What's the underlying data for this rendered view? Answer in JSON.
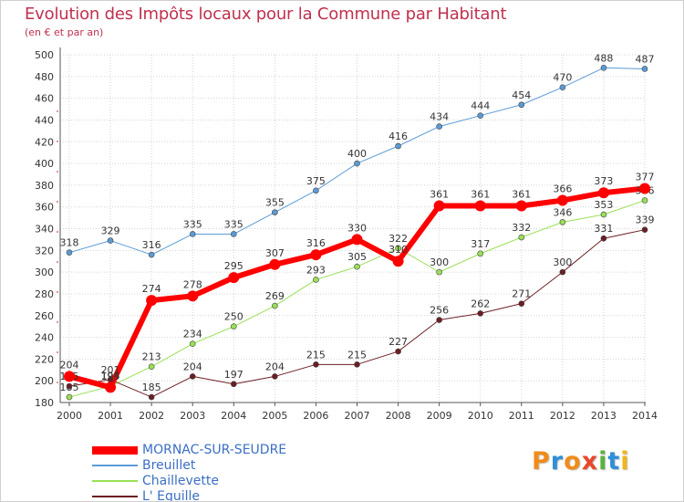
{
  "title": "Evolution des Impôts locaux pour la Commune par Habitant",
  "subtitle": "(en € et par an)",
  "brand": {
    "name": "Proxiti",
    "letters": [
      "P",
      "r",
      "o",
      "x",
      "i",
      "t",
      "i"
    ],
    "colors": [
      "#f08c1a",
      "#2f8fd8",
      "#f08c1a",
      "#e8472c",
      "#59b23b",
      "#2f8fd8",
      "#f0b61a"
    ]
  },
  "chart_data": {
    "type": "line",
    "title": "Evolution des Impôts locaux pour la Commune par Habitant",
    "ylabel": "(en € et par an)",
    "xlabel": "",
    "ylim": [
      180,
      500
    ],
    "yticks": [
      180,
      200,
      220,
      240,
      260,
      280,
      300,
      320,
      340,
      360,
      380,
      400,
      420,
      440,
      460,
      480,
      500
    ],
    "x": [
      "2000",
      "2001",
      "2002",
      "2003",
      "2004",
      "2005",
      "2006",
      "2007",
      "2008",
      "2009",
      "2010",
      "2011",
      "2012",
      "2013",
      "2014"
    ],
    "grid": true,
    "legend_position": "bottom-left",
    "series": [
      {
        "name": "Breuillet",
        "color": "#5b9bd5",
        "width": 1,
        "values": [
          318,
          329,
          316,
          335,
          335,
          355,
          375,
          400,
          416,
          434,
          444,
          454,
          470,
          488,
          487
        ]
      },
      {
        "name": "Chaillevette",
        "color": "#99e055",
        "width": 1,
        "values": [
          185,
          195,
          213,
          234,
          250,
          269,
          293,
          305,
          322,
          300,
          317,
          332,
          346,
          353,
          366
        ]
      },
      {
        "name": "L' Eguille",
        "color": "#6b1e23",
        "width": 1,
        "values": [
          195,
          201,
          185,
          204,
          197,
          204,
          215,
          215,
          227,
          256,
          262,
          271,
          300,
          331,
          339
        ]
      },
      {
        "name": "MORNAC-SUR-SEUDRE",
        "color": "#ff0000",
        "width": 6,
        "values": [
          204,
          194,
          274,
          278,
          295,
          307,
          316,
          330,
          310,
          361,
          361,
          361,
          366,
          373,
          377
        ]
      }
    ],
    "legend_order": [
      "MORNAC-SUR-SEUDRE",
      "Breuillet",
      "Chaillevette",
      "L' Eguille"
    ]
  }
}
